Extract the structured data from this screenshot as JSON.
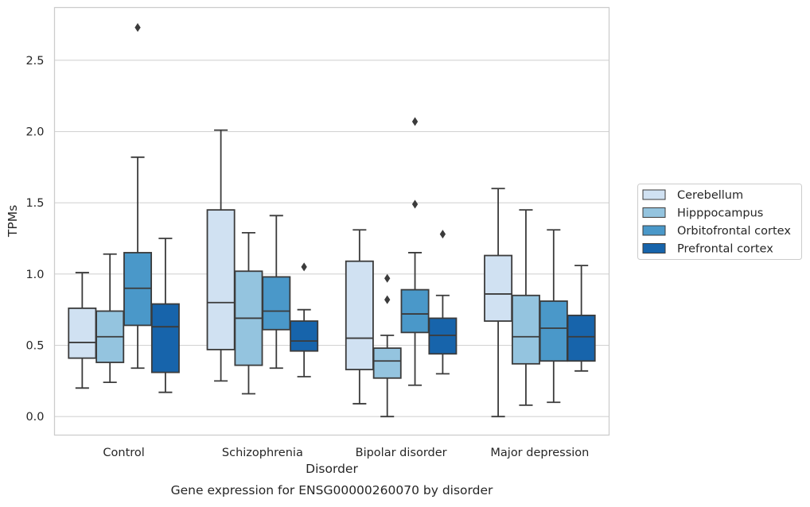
{
  "chart_data": {
    "type": "boxplot",
    "title": "",
    "caption": "Gene expression for ENSG00000260070 by disorder",
    "xlabel": "Disorder",
    "ylabel": "TPMs",
    "ylim": [
      -0.13,
      2.87
    ],
    "yticks": [
      "0.0",
      "0.5",
      "1.0",
      "1.5",
      "2.0",
      "2.5"
    ],
    "ytick_values": [
      0.0,
      0.5,
      1.0,
      1.5,
      2.0,
      2.5
    ],
    "grid": true,
    "legend_position": "right",
    "categories": [
      "Control",
      "Schizophrenia",
      "Bipolar disorder",
      "Major depression"
    ],
    "series": [
      {
        "name": "Cerebellum",
        "color": "#d0e1f2",
        "boxes": [
          {
            "whislo": 0.2,
            "q1": 0.41,
            "med": 0.52,
            "q3": 0.76,
            "whishi": 1.01,
            "fliers": []
          },
          {
            "whislo": 0.25,
            "q1": 0.47,
            "med": 0.8,
            "q3": 1.45,
            "whishi": 2.01,
            "fliers": []
          },
          {
            "whislo": 0.09,
            "q1": 0.33,
            "med": 0.55,
            "q3": 1.09,
            "whishi": 1.31,
            "fliers": []
          },
          {
            "whislo": 0.0,
            "q1": 0.67,
            "med": 0.86,
            "q3": 1.13,
            "whishi": 1.6,
            "fliers": []
          }
        ]
      },
      {
        "name": "Hipppocampus",
        "color": "#94c4df",
        "boxes": [
          {
            "whislo": 0.24,
            "q1": 0.38,
            "med": 0.56,
            "q3": 0.74,
            "whishi": 1.14,
            "fliers": []
          },
          {
            "whislo": 0.16,
            "q1": 0.36,
            "med": 0.69,
            "q3": 1.02,
            "whishi": 1.29,
            "fliers": []
          },
          {
            "whislo": 0.0,
            "q1": 0.27,
            "med": 0.39,
            "q3": 0.48,
            "whishi": 0.57,
            "fliers": [
              0.82,
              0.97
            ]
          },
          {
            "whislo": 0.08,
            "q1": 0.37,
            "med": 0.56,
            "q3": 0.85,
            "whishi": 1.45,
            "fliers": []
          }
        ]
      },
      {
        "name": "Orbitofrontal cortex",
        "color": "#4a98c9",
        "boxes": [
          {
            "whislo": 0.34,
            "q1": 0.64,
            "med": 0.9,
            "q3": 1.15,
            "whishi": 1.82,
            "fliers": [
              2.73
            ]
          },
          {
            "whislo": 0.34,
            "q1": 0.61,
            "med": 0.74,
            "q3": 0.98,
            "whishi": 1.41,
            "fliers": []
          },
          {
            "whislo": 0.22,
            "q1": 0.59,
            "med": 0.72,
            "q3": 0.89,
            "whishi": 1.15,
            "fliers": [
              1.49,
              2.07
            ]
          },
          {
            "whislo": 0.1,
            "q1": 0.39,
            "med": 0.62,
            "q3": 0.81,
            "whishi": 1.31,
            "fliers": []
          }
        ]
      },
      {
        "name": "Prefrontal cortex",
        "color": "#1764ab",
        "boxes": [
          {
            "whislo": 0.17,
            "q1": 0.31,
            "med": 0.63,
            "q3": 0.79,
            "whishi": 1.25,
            "fliers": []
          },
          {
            "whislo": 0.28,
            "q1": 0.46,
            "med": 0.53,
            "q3": 0.67,
            "whishi": 0.75,
            "fliers": [
              1.05
            ]
          },
          {
            "whislo": 0.3,
            "q1": 0.44,
            "med": 0.57,
            "q3": 0.69,
            "whishi": 0.85,
            "fliers": [
              1.28
            ]
          },
          {
            "whislo": 0.32,
            "q1": 0.39,
            "med": 0.56,
            "q3": 0.71,
            "whishi": 1.06,
            "fliers": []
          }
        ]
      }
    ]
  }
}
